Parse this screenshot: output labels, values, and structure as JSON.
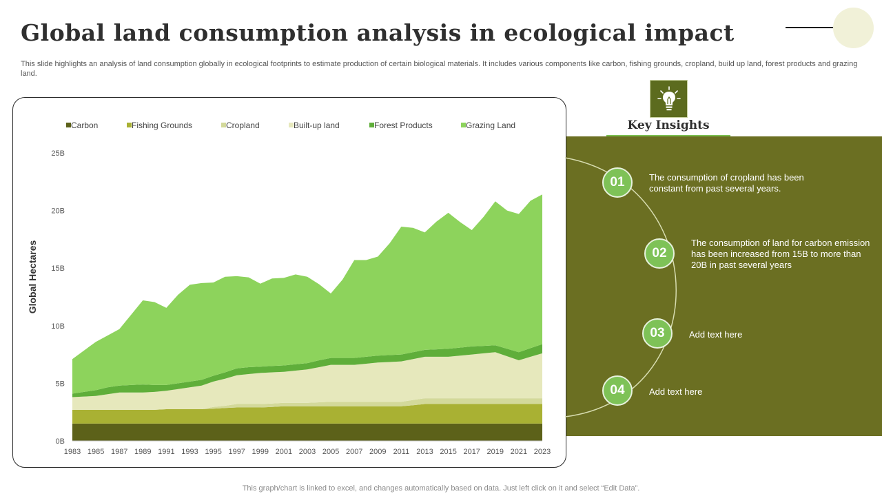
{
  "page": {
    "title": "Global land consumption analysis in ecological impact",
    "subtitle": "This slide highlights an analysis of land consumption globally in ecological footprints to estimate production of certain biological materials. It includes various components like carbon, fishing grounds, cropland, build up land, forest products and grazing land.",
    "footer": "This graph/chart is linked to excel,  and changes automatically based on data. Just left click on it and select “Edit Data”."
  },
  "insights": {
    "title": "Key Insights",
    "icon": "lightbulb-icon",
    "items": [
      {
        "num": "01",
        "text": "The consumption of cropland has been constant from past several years."
      },
      {
        "num": "02",
        "text": "The consumption of land for carbon emission has been increased from 15B to more than 20B in past several years"
      },
      {
        "num": "03",
        "text": "Add text here"
      },
      {
        "num": "04",
        "text": "Add text here"
      }
    ]
  },
  "colors": {
    "panel": "#6b6f22",
    "accent": "#7ec257"
  },
  "chart_data": {
    "type": "area",
    "stacked": true,
    "title": "",
    "xlabel": "",
    "ylabel": "Global Hectares",
    "ylim": [
      0,
      25
    ],
    "y_ticks": [
      "0B",
      "5B",
      "10B",
      "15B",
      "20B",
      "25B"
    ],
    "x": [
      1983,
      1984,
      1985,
      1986,
      1987,
      1988,
      1989,
      1990,
      1991,
      1992,
      1993,
      1994,
      1995,
      1996,
      1997,
      1998,
      1999,
      2000,
      2001,
      2002,
      2003,
      2004,
      2005,
      2006,
      2007,
      2008,
      2009,
      2010,
      2011,
      2012,
      2013,
      2014,
      2015,
      2016,
      2017,
      2018,
      2019,
      2020,
      2021,
      2022,
      2023
    ],
    "x_tick_labels": [
      "1983",
      "1985",
      "1987",
      "1989",
      "1991",
      "1993",
      "1995",
      "1997",
      "1999",
      "2001",
      "2003",
      "2005",
      "2007",
      "2009",
      "2011",
      "2013",
      "2015",
      "2017",
      "2019",
      "2021",
      "2023"
    ],
    "legend_position": "top",
    "series": [
      {
        "name": "Carbon",
        "color": "#5c6119",
        "values": [
          1.5,
          1.5,
          1.5,
          1.5,
          1.5,
          1.5,
          1.5,
          1.5,
          1.5,
          1.5,
          1.5,
          1.5,
          1.5,
          1.5,
          1.5,
          1.5,
          1.5,
          1.5,
          1.5,
          1.5,
          1.5,
          1.5,
          1.5,
          1.5,
          1.5,
          1.5,
          1.5,
          1.5,
          1.5,
          1.5,
          1.5,
          1.5,
          1.5,
          1.5,
          1.5,
          1.5,
          1.5,
          1.5,
          1.5,
          1.5,
          1.5
        ]
      },
      {
        "name": "Fishing Grounds",
        "color": "#a9b133",
        "values": [
          1.2,
          1.2,
          1.2,
          1.2,
          1.2,
          1.2,
          1.2,
          1.2,
          1.25,
          1.25,
          1.25,
          1.25,
          1.3,
          1.35,
          1.4,
          1.4,
          1.4,
          1.45,
          1.5,
          1.5,
          1.5,
          1.5,
          1.5,
          1.5,
          1.5,
          1.5,
          1.5,
          1.5,
          1.5,
          1.6,
          1.7,
          1.7,
          1.7,
          1.7,
          1.7,
          1.7,
          1.7,
          1.7,
          1.7,
          1.7,
          1.7
        ]
      },
      {
        "name": "Cropland",
        "color": "#d3d99a",
        "values": [
          0,
          0,
          0,
          0,
          0,
          0,
          0,
          0,
          0,
          0,
          0,
          0,
          0.15,
          0.2,
          0.3,
          0.3,
          0.3,
          0.3,
          0.3,
          0.3,
          0.3,
          0.35,
          0.4,
          0.4,
          0.4,
          0.4,
          0.4,
          0.4,
          0.4,
          0.45,
          0.5,
          0.5,
          0.5,
          0.5,
          0.5,
          0.5,
          0.5,
          0.5,
          0.5,
          0.5,
          0.5
        ]
      },
      {
        "name": "Built-up land",
        "color": "#e6e8bc",
        "values": [
          1.1,
          1.15,
          1.2,
          1.35,
          1.5,
          1.5,
          1.5,
          1.55,
          1.6,
          1.75,
          1.9,
          2.05,
          2.2,
          2.35,
          2.5,
          2.6,
          2.7,
          2.7,
          2.7,
          2.8,
          2.9,
          3.05,
          3.2,
          3.2,
          3.2,
          3.3,
          3.4,
          3.45,
          3.5,
          3.55,
          3.6,
          3.6,
          3.6,
          3.7,
          3.8,
          3.9,
          4.0,
          3.65,
          3.3,
          3.6,
          3.9
        ]
      },
      {
        "name": "Forest Products",
        "color": "#5fae3a",
        "values": [
          0.3,
          0.4,
          0.5,
          0.6,
          0.6,
          0.65,
          0.7,
          0.6,
          0.5,
          0.5,
          0.5,
          0.5,
          0.5,
          0.55,
          0.6,
          0.6,
          0.55,
          0.55,
          0.55,
          0.55,
          0.55,
          0.6,
          0.6,
          0.6,
          0.6,
          0.6,
          0.6,
          0.6,
          0.6,
          0.6,
          0.6,
          0.65,
          0.7,
          0.7,
          0.7,
          0.65,
          0.6,
          0.65,
          0.7,
          0.75,
          0.8
        ]
      },
      {
        "name": "Grazing Land",
        "color": "#8dd35c",
        "values": [
          3.0,
          3.6,
          4.2,
          4.5,
          4.9,
          6.1,
          7.3,
          7.2,
          6.7,
          7.7,
          8.4,
          8.4,
          8.1,
          8.3,
          8.0,
          7.8,
          7.2,
          7.6,
          7.6,
          7.8,
          7.5,
          6.6,
          5.6,
          6.8,
          8.5,
          8.4,
          8.6,
          9.7,
          11.1,
          10.8,
          10.2,
          11.1,
          11.8,
          10.9,
          10.1,
          11.2,
          12.5,
          12.0,
          12.0,
          12.8,
          13.0
        ]
      }
    ]
  }
}
